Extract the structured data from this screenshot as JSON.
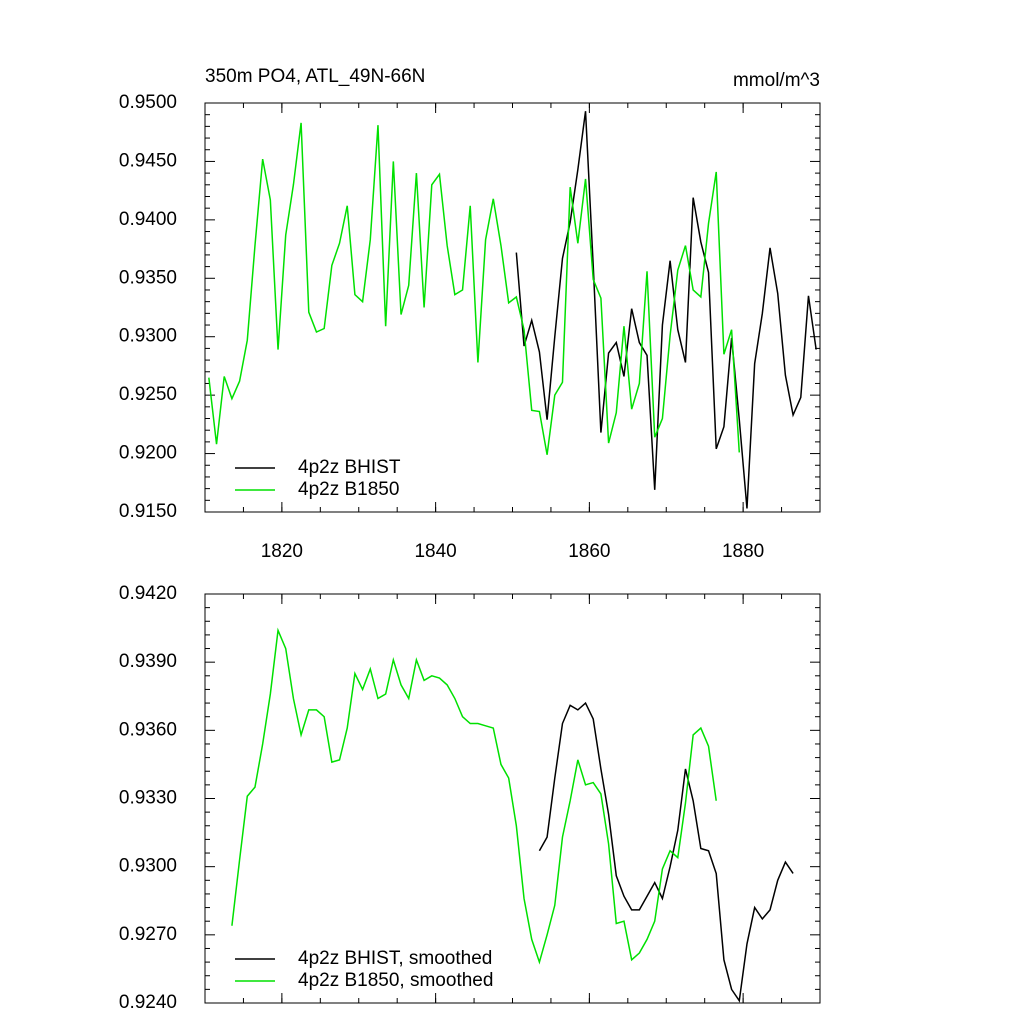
{
  "chart_data": [
    {
      "type": "line",
      "title": "350m PO4, ATL_49N-66N",
      "subtitle": "mmol/m^3",
      "x": [
        1810.5,
        1811.5,
        1812.5,
        1813.5,
        1814.5,
        1815.5,
        1816.5,
        1817.5,
        1818.5,
        1819.5,
        1820.5,
        1821.5,
        1822.5,
        1823.5,
        1824.5,
        1825.5,
        1826.5,
        1827.5,
        1828.5,
        1829.5,
        1830.5,
        1831.5,
        1832.5,
        1833.5,
        1834.5,
        1835.5,
        1836.5,
        1837.5,
        1838.5,
        1839.5,
        1840.5,
        1841.5,
        1842.5,
        1843.5,
        1844.5,
        1845.5,
        1846.5,
        1847.5,
        1848.5,
        1849.5,
        1850.5,
        1851.5,
        1852.5,
        1853.5,
        1854.5,
        1855.5,
        1856.5,
        1857.5,
        1858.5,
        1859.5,
        1860.5,
        1861.5,
        1862.5,
        1863.5,
        1864.5,
        1865.5,
        1866.5,
        1867.5,
        1868.5,
        1869.5,
        1870.5,
        1871.5,
        1872.5,
        1873.5,
        1874.5,
        1875.5,
        1876.5,
        1877.5,
        1878.5,
        1879.5,
        1880.5,
        1881.5,
        1882.5,
        1883.5,
        1884.5,
        1885.5,
        1886.5,
        1887.5,
        1888.5,
        1889.5
      ],
      "series": [
        {
          "name": "4p2z BHIST",
          "color": "#000000",
          "values": [
            null,
            null,
            null,
            null,
            null,
            null,
            null,
            null,
            null,
            null,
            null,
            null,
            null,
            null,
            null,
            null,
            null,
            null,
            null,
            null,
            null,
            null,
            null,
            null,
            null,
            null,
            null,
            null,
            null,
            null,
            null,
            null,
            null,
            null,
            null,
            null,
            null,
            null,
            null,
            null,
            0.9372,
            0.9292,
            0.9314,
            0.9287,
            0.9229,
            0.93,
            0.9367,
            0.9398,
            0.9443,
            0.9493,
            0.9361,
            0.9218,
            0.9286,
            0.9295,
            0.9266,
            0.9324,
            0.9295,
            0.9284,
            0.9169,
            0.931,
            0.9365,
            0.9306,
            0.9278,
            0.9419,
            0.9381,
            0.9355,
            0.9204,
            0.9223,
            0.9299,
            0.9229,
            0.9153,
            0.9277,
            0.932,
            0.9376,
            0.9337,
            0.9267,
            0.9233,
            0.9248,
            0.9335,
            0.9289
          ]
        },
        {
          "name": "4p2z B1850",
          "color": "#00e000",
          "values": [
            0.9265,
            0.9208,
            0.9266,
            0.9247,
            0.9262,
            0.9297,
            0.9378,
            0.9452,
            0.9417,
            0.9289,
            0.9387,
            0.943,
            0.9483,
            0.9321,
            0.9304,
            0.9307,
            0.9361,
            0.938,
            0.9412,
            0.9336,
            0.933,
            0.9383,
            0.9481,
            0.9309,
            0.945,
            0.9319,
            0.9344,
            0.944,
            0.9325,
            0.943,
            0.9439,
            0.9378,
            0.9336,
            0.934,
            0.9412,
            0.9278,
            0.9383,
            0.9418,
            0.9378,
            0.9329,
            0.9334,
            0.9306,
            0.9237,
            0.9236,
            0.9199,
            0.925,
            0.9261,
            0.9428,
            0.938,
            0.9435,
            0.9349,
            0.9333,
            0.9209,
            0.9235,
            0.9309,
            0.9238,
            0.926,
            0.9356,
            0.9214,
            0.923,
            0.9301,
            0.9357,
            0.9378,
            0.934,
            0.9334,
            0.9397,
            0.9441,
            0.9285,
            0.9306,
            0.9201,
            null,
            null,
            null,
            null,
            null,
            null,
            null,
            null,
            null,
            null
          ]
        }
      ],
      "xlim": [
        1810,
        1890
      ],
      "xticks": [
        1820,
        1840,
        1860,
        1880
      ],
      "ylim": [
        0.915,
        0.95
      ],
      "yticks": [
        {
          "value": 0.915,
          "label": "0.9150"
        },
        {
          "value": 0.92,
          "label": "0.9200"
        },
        {
          "value": 0.925,
          "label": "0.9250"
        },
        {
          "value": 0.93,
          "label": "0.9300"
        },
        {
          "value": 0.935,
          "label": "0.9350"
        },
        {
          "value": 0.94,
          "label": "0.9400"
        },
        {
          "value": 0.945,
          "label": "0.9450"
        },
        {
          "value": 0.95,
          "label": "0.9500"
        }
      ],
      "legend": "lower left"
    },
    {
      "type": "line",
      "x": [
        1813.5,
        1814.5,
        1815.5,
        1816.5,
        1817.5,
        1818.5,
        1819.5,
        1820.5,
        1821.5,
        1822.5,
        1823.5,
        1824.5,
        1825.5,
        1826.5,
        1827.5,
        1828.5,
        1829.5,
        1830.5,
        1831.5,
        1832.5,
        1833.5,
        1834.5,
        1835.5,
        1836.5,
        1837.5,
        1838.5,
        1839.5,
        1840.5,
        1841.5,
        1842.5,
        1843.5,
        1844.5,
        1845.5,
        1846.5,
        1847.5,
        1848.5,
        1849.5,
        1850.5,
        1851.5,
        1852.5,
        1853.5,
        1854.5,
        1855.5,
        1856.5,
        1857.5,
        1858.5,
        1859.5,
        1860.5,
        1861.5,
        1862.5,
        1863.5,
        1864.5,
        1865.5,
        1866.5,
        1867.5,
        1868.5,
        1869.5,
        1870.5,
        1871.5,
        1872.5,
        1873.5,
        1874.5,
        1875.5,
        1876.5,
        1877.5,
        1878.5,
        1879.5,
        1880.5,
        1881.5,
        1882.5,
        1883.5,
        1884.5,
        1885.5,
        1886.5
      ],
      "series": [
        {
          "name": "4p2z BHIST, smoothed",
          "color": "#000000",
          "values": [
            null,
            null,
            null,
            null,
            null,
            null,
            null,
            null,
            null,
            null,
            null,
            null,
            null,
            null,
            null,
            null,
            null,
            null,
            null,
            null,
            null,
            null,
            null,
            null,
            null,
            null,
            null,
            null,
            null,
            null,
            null,
            null,
            null,
            null,
            null,
            null,
            null,
            null,
            null,
            null,
            0.9307,
            0.9313,
            0.9339,
            0.9363,
            0.9371,
            0.9369,
            0.9372,
            0.9365,
            0.9343,
            0.9323,
            0.9296,
            0.9287,
            0.9281,
            0.9281,
            0.9287,
            0.9293,
            0.9286,
            0.93,
            0.9316,
            0.9343,
            0.9329,
            0.9308,
            0.9307,
            0.9297,
            0.9259,
            0.9246,
            0.9241,
            0.9266,
            0.9282,
            0.9277,
            0.9281,
            0.9294,
            0.9302,
            0.9297
          ]
        },
        {
          "name": "4p2z B1850, smoothed",
          "color": "#00e000",
          "values": [
            0.9274,
            0.9303,
            0.9331,
            0.9335,
            0.9354,
            0.9376,
            0.9404,
            0.9396,
            0.9374,
            0.9358,
            0.9369,
            0.9369,
            0.9366,
            0.9346,
            0.9347,
            0.9361,
            0.9385,
            0.9378,
            0.9387,
            0.9374,
            0.9376,
            0.9391,
            0.938,
            0.9374,
            0.9391,
            0.9382,
            0.9384,
            0.9383,
            0.938,
            0.9374,
            0.9366,
            0.9363,
            0.9363,
            0.9362,
            0.9361,
            0.9345,
            0.9339,
            0.9318,
            0.9286,
            0.9268,
            0.9258,
            0.927,
            0.9283,
            0.9313,
            0.9329,
            0.9347,
            0.9336,
            0.9337,
            0.9332,
            0.931,
            0.9275,
            0.9276,
            0.9259,
            0.9262,
            0.9268,
            0.9276,
            0.9299,
            0.9307,
            0.9304,
            0.9328,
            0.9358,
            0.9361,
            0.9353,
            0.9329,
            null,
            null,
            null,
            null,
            null,
            null,
            null,
            null,
            null,
            null
          ]
        }
      ],
      "xlim": [
        1810,
        1890
      ],
      "xticks": [
        1820,
        1840,
        1860,
        1880
      ],
      "ylim": [
        0.924,
        0.942
      ],
      "yticks": [
        {
          "value": 0.924,
          "label": "0.9240"
        },
        {
          "value": 0.927,
          "label": "0.9270"
        },
        {
          "value": 0.93,
          "label": "0.9300"
        },
        {
          "value": 0.933,
          "label": "0.9330"
        },
        {
          "value": 0.936,
          "label": "0.9360"
        },
        {
          "value": 0.939,
          "label": "0.9390"
        },
        {
          "value": 0.942,
          "label": "0.9420"
        }
      ],
      "legend": "lower left"
    }
  ]
}
